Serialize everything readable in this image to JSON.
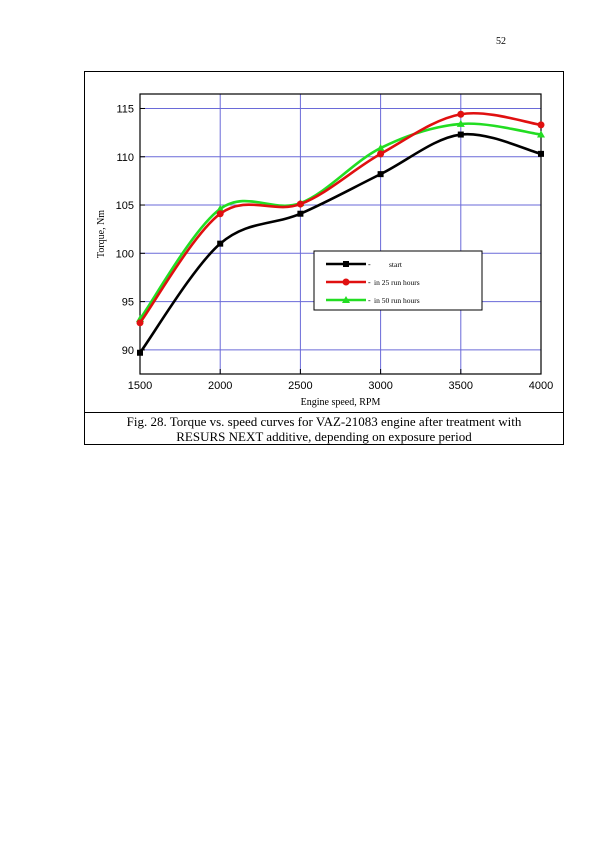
{
  "page": {
    "number": "52"
  },
  "caption": {
    "line1": "Fig. 28. Torque vs. speed curves for VAZ-21083 engine after treatment with",
    "line2": "RESURS NEXT additive, depending on exposure period"
  },
  "chart_data": {
    "type": "line",
    "title": "",
    "xlabel": "Engine speed, RPM",
    "ylabel": "Torque, Nm",
    "x": [
      1500,
      2000,
      2500,
      3000,
      3500,
      4000
    ],
    "xticks": [
      1500,
      2000,
      2500,
      3000,
      3500,
      4000
    ],
    "yticks": [
      90,
      95,
      100,
      105,
      110,
      115
    ],
    "xlim": [
      1500,
      4000
    ],
    "ylim": [
      87.5,
      116.5
    ],
    "grid": true,
    "legend_position": "center-right",
    "series": [
      {
        "name": "start",
        "color": "#000000",
        "marker": "square",
        "values": [
          89.7,
          101.0,
          104.1,
          108.2,
          112.3,
          110.3
        ]
      },
      {
        "name": "in 25 run hours",
        "color": "#e01010",
        "marker": "circle",
        "values": [
          92.8,
          104.1,
          105.1,
          110.3,
          114.4,
          113.3
        ]
      },
      {
        "name": "in 50 run hours",
        "color": "#22dd22",
        "marker": "triangle",
        "values": [
          93.2,
          104.6,
          105.2,
          110.9,
          113.4,
          112.3
        ]
      }
    ]
  }
}
